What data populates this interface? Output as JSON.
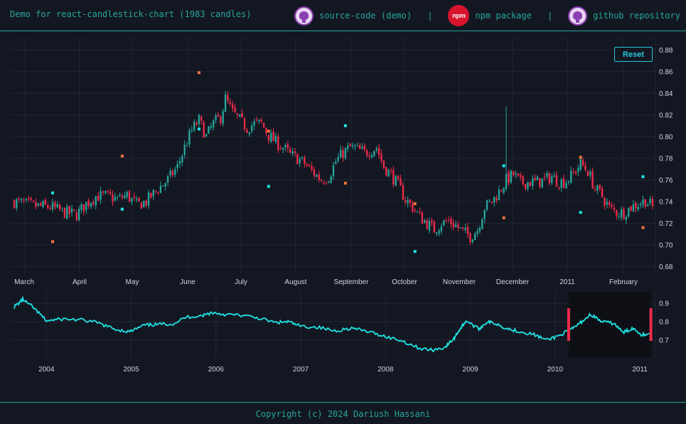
{
  "header": {
    "title": "Demo for react-candlestick-chart (1983 candles)",
    "links": [
      {
        "label": "source-code (demo)",
        "icon": "github-octocat-icon"
      },
      {
        "label": "npm package",
        "icon": "npm-logo-icon",
        "logo_text": "npm"
      },
      {
        "label": "github repository",
        "icon": "github-octocat-icon"
      }
    ],
    "separator": "|"
  },
  "toolbar": {
    "reset_label": "Reset"
  },
  "footer": {
    "copyright": "Copyright (c) 2024 Dariush Hassani"
  },
  "colors": {
    "up": "#26a69a",
    "down": "#ef2b4a",
    "line": "#1fe4e4",
    "accent": "#26a69a",
    "background": "#131722"
  },
  "chart_data": [
    {
      "type": "candlestick",
      "y_ticks": [
        "0.88",
        "0.86",
        "0.84",
        "0.82",
        "0.80",
        "0.78",
        "0.76",
        "0.74",
        "0.72",
        "0.70",
        "0.68"
      ],
      "ylim": [
        0.675,
        0.89
      ],
      "x_ticks": [
        "March",
        "April",
        "May",
        "June",
        "July",
        "August",
        "September",
        "October",
        "November",
        "December",
        "2011",
        "February"
      ],
      "close_path": [
        [
          0,
          0.74
        ],
        [
          8,
          0.736
        ],
        [
          15,
          0.735
        ],
        [
          21,
          0.73
        ],
        [
          26,
          0.728
        ],
        [
          30,
          0.738
        ],
        [
          34,
          0.745
        ],
        [
          39,
          0.745
        ],
        [
          43,
          0.742
        ],
        [
          47,
          0.746
        ],
        [
          51,
          0.737
        ],
        [
          55,
          0.74
        ],
        [
          60,
          0.752
        ],
        [
          64,
          0.76
        ],
        [
          68,
          0.772
        ],
        [
          71,
          0.79
        ],
        [
          74,
          0.806
        ],
        [
          77,
          0.815
        ],
        [
          80,
          0.8
        ],
        [
          83,
          0.812
        ],
        [
          86,
          0.818
        ],
        [
          88,
          0.835
        ],
        [
          91,
          0.822
        ],
        [
          94,
          0.815
        ],
        [
          97,
          0.808
        ],
        [
          100,
          0.812
        ],
        [
          103,
          0.812
        ],
        [
          106,
          0.801
        ],
        [
          109,
          0.795
        ],
        [
          112,
          0.79
        ],
        [
          115,
          0.783
        ],
        [
          118,
          0.78
        ],
        [
          121,
          0.775
        ],
        [
          124,
          0.768
        ],
        [
          128,
          0.76
        ],
        [
          131,
          0.763
        ],
        [
          134,
          0.777
        ],
        [
          137,
          0.785
        ],
        [
          140,
          0.79
        ],
        [
          143,
          0.788
        ],
        [
          146,
          0.785
        ],
        [
          149,
          0.788
        ],
        [
          151,
          0.79
        ],
        [
          154,
          0.772
        ],
        [
          157,
          0.765
        ],
        [
          160,
          0.755
        ],
        [
          163,
          0.742
        ],
        [
          166,
          0.735
        ],
        [
          169,
          0.726
        ],
        [
          172,
          0.72
        ],
        [
          175,
          0.714
        ],
        [
          178,
          0.72
        ],
        [
          181,
          0.722
        ],
        [
          184,
          0.718
        ],
        [
          187,
          0.712
        ],
        [
          190,
          0.708
        ],
        [
          193,
          0.714
        ],
        [
          196,
          0.735
        ],
        [
          199,
          0.74
        ],
        [
          202,
          0.749
        ],
        [
          205,
          0.76
        ],
        [
          208,
          0.765
        ],
        [
          211,
          0.757
        ],
        [
          214,
          0.758
        ],
        [
          218,
          0.758
        ],
        [
          221,
          0.76
        ],
        [
          224,
          0.763
        ],
        [
          227,
          0.758
        ],
        [
          230,
          0.759
        ],
        [
          233,
          0.766
        ],
        [
          236,
          0.775
        ],
        [
          239,
          0.768
        ],
        [
          242,
          0.752
        ],
        [
          245,
          0.745
        ],
        [
          248,
          0.734
        ],
        [
          251,
          0.73
        ],
        [
          254,
          0.73
        ],
        [
          257,
          0.735
        ],
        [
          260,
          0.738
        ],
        [
          263,
          0.741
        ],
        [
          266,
          0.735
        ]
      ],
      "spike": [
        205,
        0.828
      ],
      "markers_up": [
        [
          16,
          0.748
        ],
        [
          45,
          0.733
        ],
        [
          77,
          0.807
        ],
        [
          106,
          0.754
        ],
        [
          138,
          0.81
        ],
        [
          167,
          0.694
        ],
        [
          204,
          0.773
        ],
        [
          236,
          0.73
        ],
        [
          262,
          0.763
        ]
      ],
      "markers_down": [
        [
          16,
          0.703
        ],
        [
          45,
          0.782
        ],
        [
          77,
          0.859
        ],
        [
          106,
          0.805
        ],
        [
          138,
          0.757
        ],
        [
          167,
          0.738
        ],
        [
          204,
          0.725
        ],
        [
          236,
          0.781
        ],
        [
          262,
          0.716
        ]
      ],
      "n_candles": 267
    },
    {
      "type": "line",
      "y_ticks": [
        "0.9",
        "0.8",
        "0.7"
      ],
      "ylim": [
        0.61,
        0.955
      ],
      "x_ticks": [
        "2004",
        "2005",
        "2006",
        "2007",
        "2008",
        "2009",
        "2010",
        "2011"
      ],
      "xlim": [
        2003.62,
        2011.15
      ],
      "selection": [
        2010.16,
        2011.13
      ],
      "series": [
        [
          2003.62,
          0.88
        ],
        [
          2003.72,
          0.922
        ],
        [
          2003.85,
          0.875
        ],
        [
          2004.0,
          0.805
        ],
        [
          2004.2,
          0.815
        ],
        [
          2004.4,
          0.81
        ],
        [
          2004.6,
          0.795
        ],
        [
          2004.8,
          0.76
        ],
        [
          2004.98,
          0.745
        ],
        [
          2005.15,
          0.78
        ],
        [
          2005.3,
          0.785
        ],
        [
          2005.5,
          0.79
        ],
        [
          2005.65,
          0.825
        ],
        [
          2005.85,
          0.835
        ],
        [
          2005.95,
          0.85
        ],
        [
          2006.1,
          0.84
        ],
        [
          2006.3,
          0.835
        ],
        [
          2006.5,
          0.82
        ],
        [
          2006.7,
          0.795
        ],
        [
          2006.85,
          0.8
        ],
        [
          2007.0,
          0.775
        ],
        [
          2007.2,
          0.77
        ],
        [
          2007.4,
          0.75
        ],
        [
          2007.6,
          0.765
        ],
        [
          2007.8,
          0.745
        ],
        [
          2008.0,
          0.72
        ],
        [
          2008.2,
          0.695
        ],
        [
          2008.4,
          0.655
        ],
        [
          2008.55,
          0.645
        ],
        [
          2008.7,
          0.66
        ],
        [
          2008.8,
          0.705
        ],
        [
          2008.87,
          0.755
        ],
        [
          2008.95,
          0.805
        ],
        [
          2009.1,
          0.76
        ],
        [
          2009.2,
          0.8
        ],
        [
          2009.3,
          0.79
        ],
        [
          2009.45,
          0.76
        ],
        [
          2009.6,
          0.745
        ],
        [
          2009.75,
          0.73
        ],
        [
          2009.9,
          0.7
        ],
        [
          2010.05,
          0.725
        ],
        [
          2010.2,
          0.76
        ],
        [
          2010.3,
          0.795
        ],
        [
          2010.42,
          0.84
        ],
        [
          2010.55,
          0.8
        ],
        [
          2010.7,
          0.79
        ],
        [
          2010.8,
          0.74
        ],
        [
          2010.92,
          0.765
        ],
        [
          2011.02,
          0.73
        ],
        [
          2011.12,
          0.735
        ]
      ]
    }
  ]
}
